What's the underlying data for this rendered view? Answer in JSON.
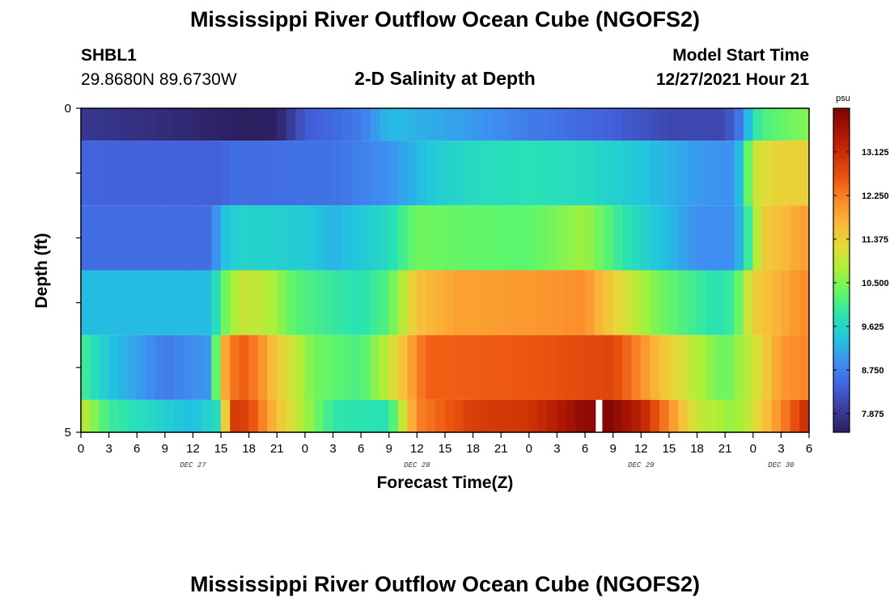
{
  "title": "Mississippi River Outflow Ocean Cube (NGOFS2)",
  "station": {
    "name": "SHBL1",
    "coordinates": "29.8680N  89.6730W"
  },
  "plot_title": "2-D Salinity at Depth",
  "model_start": {
    "label": "Model Start Time",
    "value": "12/27/2021 Hour 21"
  },
  "footer_title": "Mississippi River Outflow Ocean Cube (NGOFS2)",
  "colors": {
    "gap": "#ffffff",
    "frame": "#000000"
  },
  "chart_data": {
    "type": "heatmap",
    "xlabel": "Forecast Time(Z)",
    "ylabel": "Depth (ft)",
    "x_start_hour": 0,
    "x_end_hour": 78,
    "x_tick_labels": [
      "0",
      "3",
      "6",
      "9",
      "12",
      "15",
      "18",
      "21",
      "0",
      "3",
      "6",
      "9",
      "12",
      "15",
      "18",
      "21",
      "0",
      "3",
      "6",
      "9",
      "12",
      "15",
      "18",
      "21",
      "0",
      "3",
      "6"
    ],
    "date_labels": [
      {
        "label": "DEC 27",
        "hour": 12
      },
      {
        "label": "DEC 28",
        "hour": 36
      },
      {
        "label": "DEC 29",
        "hour": 60
      },
      {
        "label": "DEC 30",
        "hour": 75
      }
    ],
    "y_tick_labels": [
      "0",
      "5"
    ],
    "y_range": [
      0,
      5
    ],
    "layers": [
      {
        "top": 0.0,
        "bottom": 0.5,
        "keyframes": [
          [
            0,
            7.9
          ],
          [
            9,
            7.7
          ],
          [
            18,
            7.5
          ],
          [
            21,
            7.55
          ],
          [
            24,
            8.35
          ],
          [
            27,
            8.5
          ],
          [
            30,
            8.7
          ],
          [
            33,
            9.3
          ],
          [
            42,
            9.0
          ],
          [
            48,
            8.7
          ],
          [
            57,
            8.4
          ],
          [
            63,
            8.1
          ],
          [
            69,
            8.1
          ],
          [
            71,
            8.8
          ],
          [
            72,
            9.8
          ],
          [
            73,
            10.1
          ],
          [
            76,
            10.4
          ],
          [
            78,
            10.5
          ]
        ]
      },
      {
        "top": 0.5,
        "bottom": 1.5,
        "keyframes": [
          [
            0,
            8.45
          ],
          [
            15,
            8.4
          ],
          [
            16,
            8.55
          ],
          [
            27,
            8.6
          ],
          [
            33,
            8.9
          ],
          [
            38,
            9.5
          ],
          [
            42,
            9.7
          ],
          [
            48,
            9.8
          ],
          [
            54,
            9.7
          ],
          [
            60,
            9.4
          ],
          [
            66,
            9.0
          ],
          [
            70,
            8.9
          ],
          [
            71,
            9.7
          ],
          [
            72,
            11.0
          ],
          [
            74,
            11.3
          ],
          [
            78,
            11.4
          ]
        ]
      },
      {
        "top": 1.5,
        "bottom": 2.5,
        "keyframes": [
          [
            0,
            8.55
          ],
          [
            14,
            8.55
          ],
          [
            15,
            9.3
          ],
          [
            17,
            9.6
          ],
          [
            24,
            9.5
          ],
          [
            27,
            9.2
          ],
          [
            33,
            9.7
          ],
          [
            36,
            10.4
          ],
          [
            42,
            10.3
          ],
          [
            48,
            10.25
          ],
          [
            54,
            10.7
          ],
          [
            58,
            9.9
          ],
          [
            66,
            8.9
          ],
          [
            70,
            8.9
          ],
          [
            71,
            9.5
          ],
          [
            73,
            11.4
          ],
          [
            78,
            12.0
          ]
        ]
      },
      {
        "top": 2.5,
        "bottom": 3.5,
        "keyframes": [
          [
            0,
            9.3
          ],
          [
            14,
            9.3
          ],
          [
            15,
            10.2
          ],
          [
            17,
            11.0
          ],
          [
            20,
            10.9
          ],
          [
            23,
            10.2
          ],
          [
            30,
            9.8
          ],
          [
            33,
            10.2
          ],
          [
            36,
            11.6
          ],
          [
            40,
            11.9
          ],
          [
            48,
            12.0
          ],
          [
            54,
            12.1
          ],
          [
            57,
            11.4
          ],
          [
            62,
            10.4
          ],
          [
            68,
            9.8
          ],
          [
            70,
            10.0
          ],
          [
            72,
            11.4
          ],
          [
            78,
            12.2
          ]
        ]
      },
      {
        "top": 3.5,
        "bottom": 4.5,
        "keyframes": [
          [
            0,
            10.1
          ],
          [
            3,
            9.4
          ],
          [
            9,
            8.7
          ],
          [
            14,
            9.0
          ],
          [
            15,
            11.6
          ],
          [
            17,
            12.6
          ],
          [
            19,
            12.2
          ],
          [
            21,
            11.5
          ],
          [
            25,
            10.4
          ],
          [
            30,
            10.1
          ],
          [
            33,
            11.0
          ],
          [
            37,
            12.5
          ],
          [
            48,
            12.6
          ],
          [
            57,
            12.8
          ],
          [
            63,
            11.4
          ],
          [
            69,
            10.3
          ],
          [
            72,
            11.0
          ],
          [
            75,
            12.0
          ],
          [
            78,
            12.2
          ]
        ]
      },
      {
        "top": 4.5,
        "bottom": 5.0,
        "keyframes": [
          [
            0,
            11.0
          ],
          [
            3,
            10.0
          ],
          [
            12,
            9.3
          ],
          [
            15,
            9.8
          ],
          [
            16,
            13.0
          ],
          [
            18,
            12.8
          ],
          [
            21,
            11.6
          ],
          [
            27,
            9.9
          ],
          [
            33,
            9.8
          ],
          [
            36,
            12.2
          ],
          [
            42,
            12.9
          ],
          [
            48,
            13.0
          ],
          [
            54,
            13.8
          ],
          [
            55,
            13.8
          ],
          [
            56,
            14.0
          ],
          [
            60,
            13.3
          ],
          [
            66,
            11.0
          ],
          [
            70,
            10.6
          ],
          [
            72,
            11.1
          ],
          [
            78,
            13.2
          ]
        ]
      }
    ],
    "gap": {
      "hour": 55,
      "layer": 5
    },
    "colorbar": {
      "unit": "psu",
      "min": 7.5,
      "max": 14.0,
      "tick_labels": [
        "13.125",
        "12.250",
        "11.375",
        "10.500",
        "9.625",
        "8.750",
        "7.875"
      ],
      "stops": [
        "#2c1e5e",
        "#3a3d9c",
        "#4262dc",
        "#3f8ef2",
        "#22c3e0",
        "#29e2b4",
        "#5ff66a",
        "#a8f038",
        "#e1dc37",
        "#faba39",
        "#fc8a2a",
        "#ec5510",
        "#cb2f05",
        "#a81503",
        "#7a0403"
      ]
    }
  }
}
